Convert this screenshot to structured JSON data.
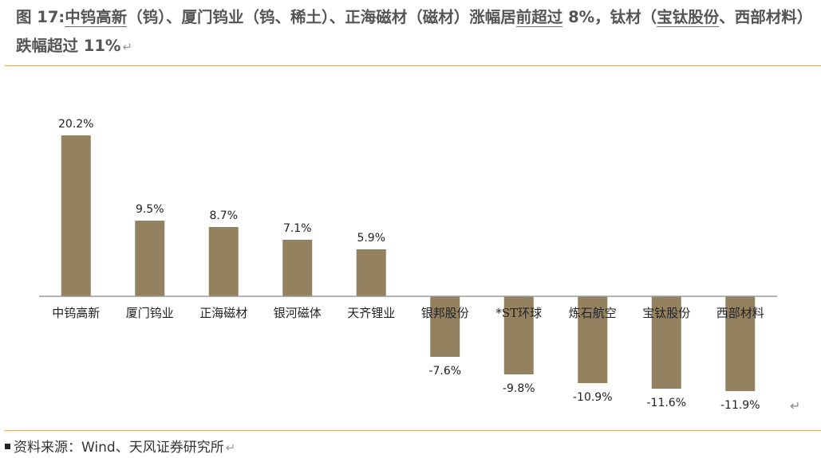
{
  "title": {
    "p1": "图 17:",
    "u1": "中钨高新",
    "p2": "（钨）、厦门钨业（钨、稀土）、正海磁材（磁材）涨幅居",
    "u2": "前超过",
    "p3": " 8%，钛材（",
    "u3": "宝钛股份",
    "p4": "、西部材料）跌幅超过 11%",
    "mark": "↵"
  },
  "source": {
    "text": "资料来源：Wind、天风证券研究所",
    "mark": "↵"
  },
  "return_mark": "↵",
  "colors": {
    "bar": "#948160",
    "axis": "#9a9a9a",
    "rule": "#e0a868"
  },
  "chart_data": {
    "type": "bar",
    "categories": [
      "中钨高新",
      "厦门钨业",
      "正海磁材",
      "银河磁体",
      "天齐锂业",
      "银邦股份",
      "*ST环球",
      "炼石航空",
      "宝钛股份",
      "西部材料"
    ],
    "values": [
      20.2,
      9.5,
      8.7,
      7.1,
      5.9,
      -7.6,
      -9.8,
      -10.9,
      -11.6,
      -11.9
    ],
    "data_labels": [
      "20.2%",
      "9.5%",
      "8.7%",
      "7.1%",
      "5.9%",
      "-7.6%",
      "-9.8%",
      "-10.9%",
      "-11.6%",
      "-11.9%"
    ],
    "title": "",
    "xlabel": "",
    "ylabel": "",
    "ylim": [
      -12,
      20.2
    ],
    "grid": false,
    "legend": "none"
  }
}
